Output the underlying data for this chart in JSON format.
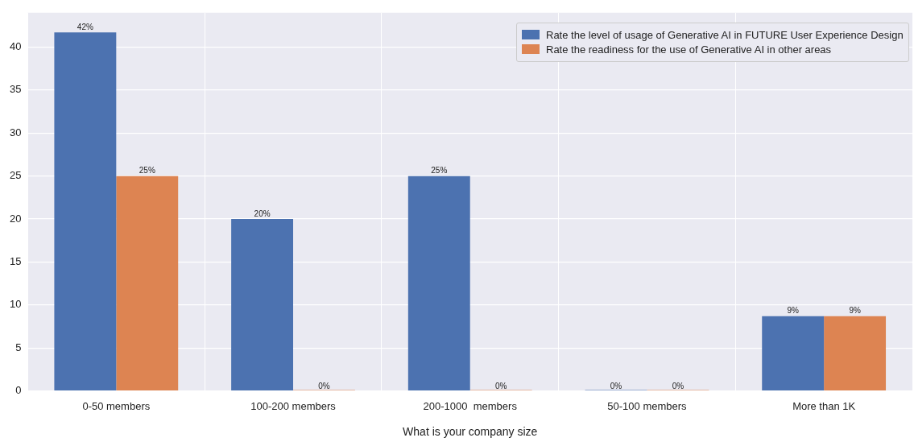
{
  "chart_data": {
    "type": "bar",
    "xlabel": "What is your company size",
    "categories": [
      "0-50 members",
      "100-200 members",
      "200-1000  members",
      "50-100 members",
      "More than 1K"
    ],
    "series": [
      {
        "name": "Rate the level of usage of Generative AI in FUTURE User Experience Design",
        "color": "#4c72b0",
        "values": [
          41.7,
          20,
          25,
          0,
          8.7
        ],
        "value_labels": [
          "42%",
          "20%",
          "25%",
          "0%",
          "9%"
        ]
      },
      {
        "name": "Rate the readiness for the use of Generative AI in other areas",
        "color": "#dd8452",
        "values": [
          25,
          0,
          0,
          0,
          8.7
        ],
        "value_labels": [
          "25%",
          "0%",
          "0%",
          "0%",
          "9%"
        ]
      }
    ],
    "ylim": [
      0,
      44
    ],
    "yticks": [
      0,
      5,
      10,
      15,
      20,
      25,
      30,
      35,
      40
    ],
    "grid": true,
    "legend": "top right"
  }
}
